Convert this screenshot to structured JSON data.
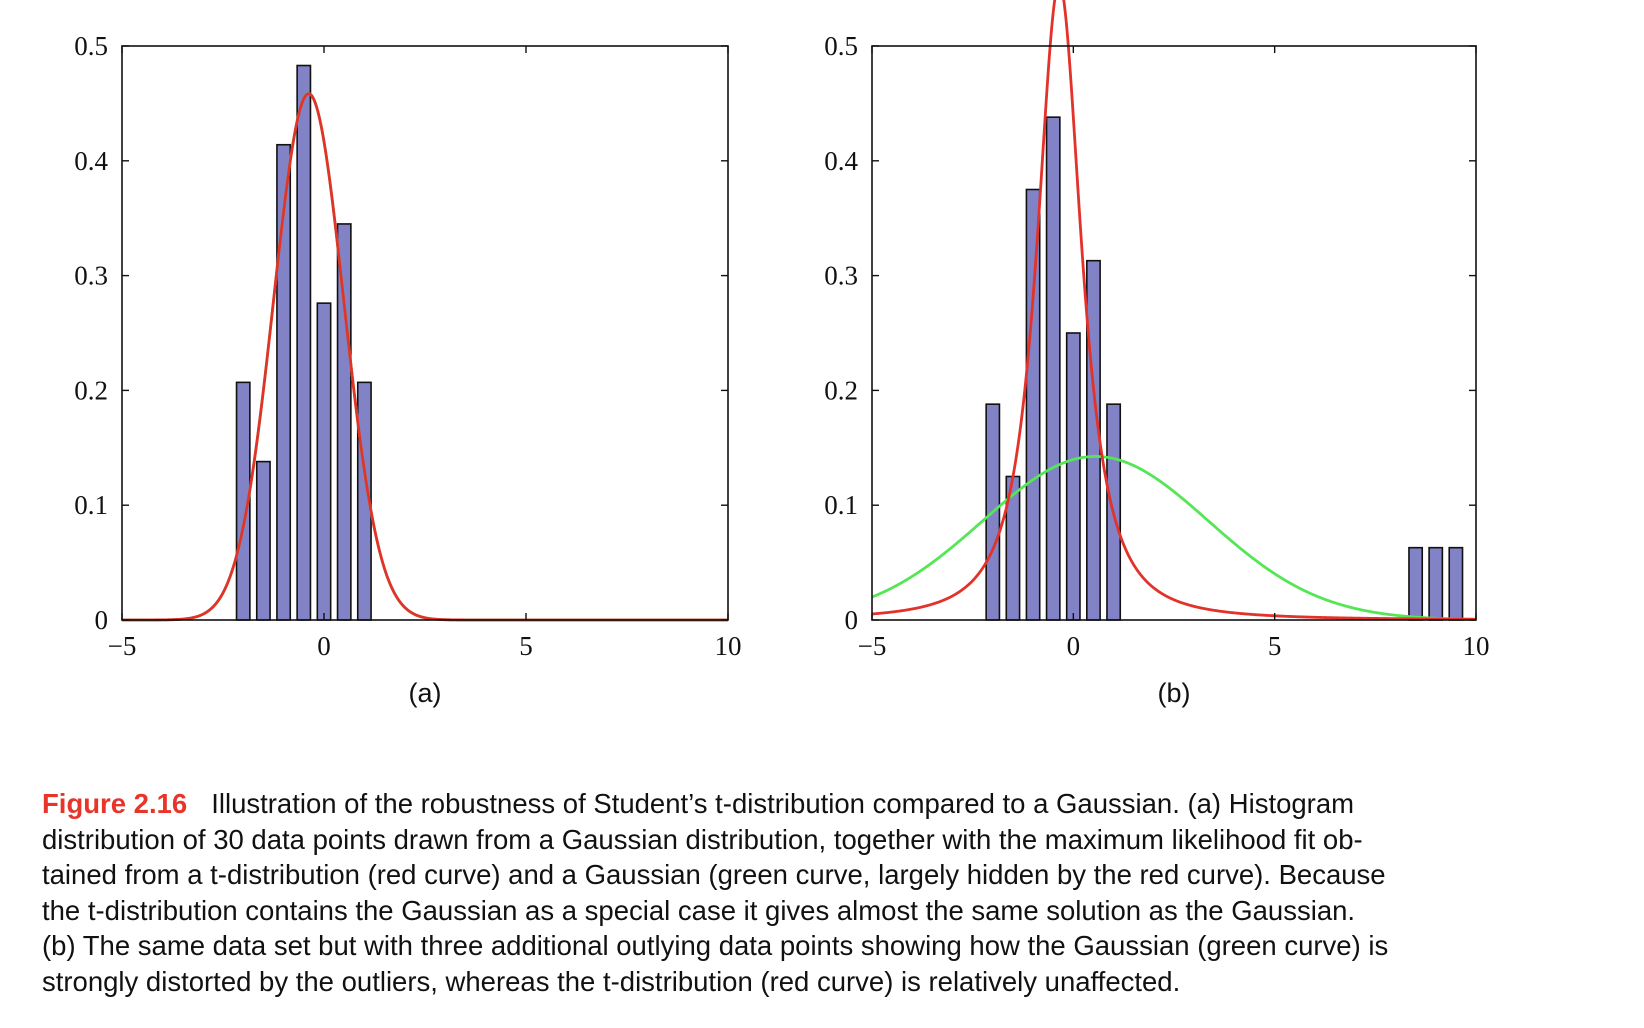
{
  "chart_data": [
    {
      "type": "bar",
      "panel_label": "(a)",
      "description_series": "histogram with fitted densities",
      "xlim": [
        -5,
        10
      ],
      "ylim": [
        0,
        0.5
      ],
      "xticks": [
        -5,
        0,
        5,
        10
      ],
      "xtick_labels": [
        "−5",
        "0",
        "5",
        "10"
      ],
      "yticks": [
        0,
        0.1,
        0.2,
        0.3,
        0.4,
        0.5
      ],
      "ytick_labels": [
        "0",
        "0.1",
        "0.2",
        "0.3",
        "0.4",
        "0.5"
      ],
      "bar_width": 0.33,
      "bars": {
        "x": [
          -2.0,
          -1.5,
          -1.0,
          -0.5,
          0.0,
          0.5,
          1.0
        ],
        "values": [
          0.207,
          0.138,
          0.414,
          0.483,
          0.276,
          0.345,
          0.207
        ]
      },
      "series": [
        {
          "name": "Gaussian fit",
          "color": "#55e655",
          "dist": "gaussian",
          "mu": -0.38,
          "sigma": 0.87
        },
        {
          "name": "t-distribution fit",
          "color": "#e2322a",
          "dist": "student_t",
          "mu": -0.38,
          "scale": 0.87,
          "nu": 1000
        }
      ]
    },
    {
      "type": "bar",
      "panel_label": "(b)",
      "xlim": [
        -5,
        10
      ],
      "ylim": [
        0,
        0.5
      ],
      "xticks": [
        -5,
        0,
        5,
        10
      ],
      "xtick_labels": [
        "−5",
        "0",
        "5",
        "10"
      ],
      "yticks": [
        0,
        0.1,
        0.2,
        0.3,
        0.4,
        0.5
      ],
      "ytick_labels": [
        "0",
        "0.1",
        "0.2",
        "0.3",
        "0.4",
        "0.5"
      ],
      "bar_width": 0.33,
      "bars": {
        "x": [
          -2.0,
          -1.5,
          -1.0,
          -0.5,
          0.0,
          0.5,
          1.0,
          8.5,
          9.0,
          9.5
        ],
        "values": [
          0.188,
          0.125,
          0.375,
          0.438,
          0.25,
          0.313,
          0.188,
          0.063,
          0.063,
          0.063
        ]
      },
      "series": [
        {
          "name": "Gaussian fit",
          "color": "#55e655",
          "dist": "gaussian",
          "mu": 0.55,
          "sigma": 2.8
        },
        {
          "name": "t-distribution fit",
          "color": "#e2322a",
          "dist": "student_t",
          "mu": -0.35,
          "scale": 0.62,
          "nu": 1.6
        }
      ]
    }
  ],
  "caption": {
    "figure_label": "Figure 2.16",
    "lines": [
      "Illustration of the robustness of Student’s t-distribution compared to a Gaussian.  (a) Histogram",
      "distribution of 30 data points drawn from a Gaussian distribution, together with the maximum likelihood fit ob-",
      "tained from a t-distribution (red curve) and a Gaussian (green curve, largely hidden by the red curve). Because",
      "the t-distribution contains the Gaussian as a special case it gives almost the same solution as the Gaussian.",
      "(b) The same data set but with three additional outlying data points showing how the Gaussian (green curve) is",
      "strongly distorted by the outliers, whereas the t-distribution (red curve) is relatively unaffected."
    ]
  },
  "colors": {
    "bar_fill": "#8183c6",
    "bar_stroke": "#111111",
    "axis": "#111111",
    "figure_label": "#e8352a"
  }
}
